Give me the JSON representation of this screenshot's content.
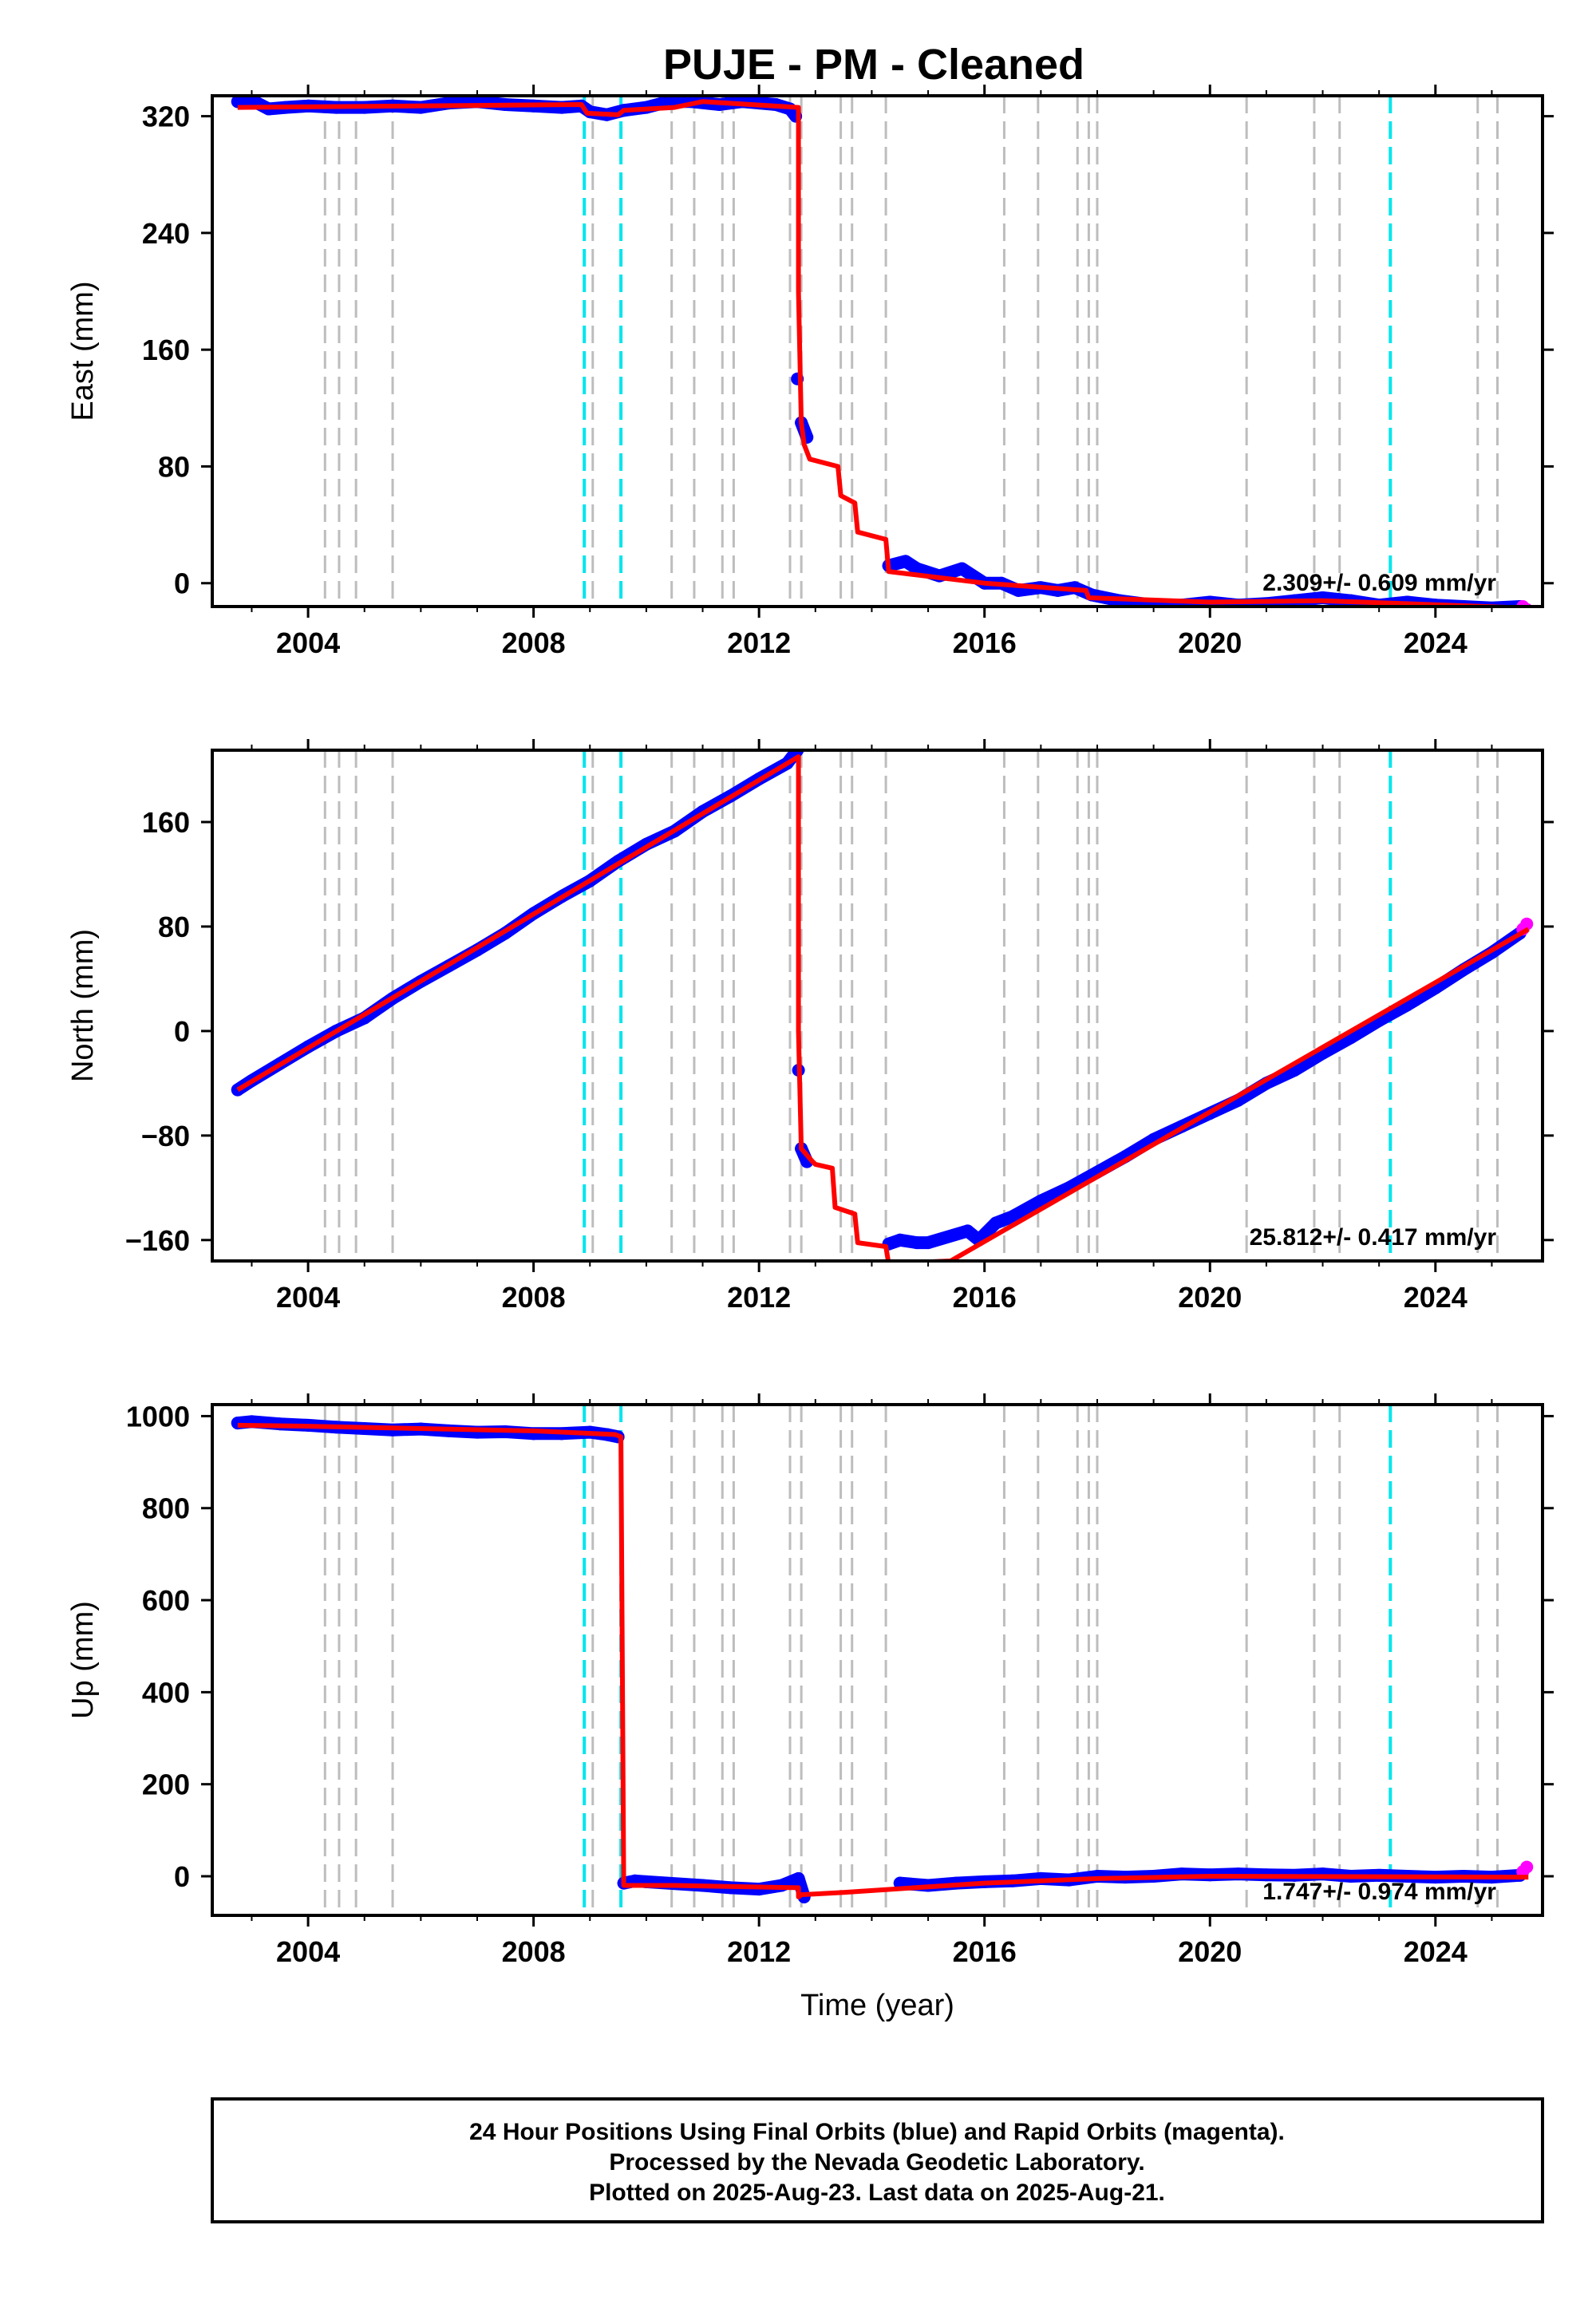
{
  "title": "PUJE  - PM - Cleaned",
  "footer": {
    "lines": [
      "24 Hour Positions Using Final Orbits (blue) and Rapid Orbits (magenta).",
      "Processed by the Nevada Geodetic Laboratory.",
      "Plotted on 2025-Aug-23. Last data on 2025-Aug-21."
    ]
  },
  "colors": {
    "final_orbits": "#0000ff",
    "rapid_orbits": "#ff00ff",
    "model": "#ff0000",
    "equipment_change": "#bdbdbd",
    "earthquake": "#00e5ee"
  },
  "chart_data": [
    {
      "type": "scatter",
      "panel": "east",
      "ylabel": "East (mm)",
      "xlabel": "",
      "xlim": [
        2002.3,
        2025.9
      ],
      "ylim": [
        -16,
        334
      ],
      "xticks": [
        2004,
        2008,
        2012,
        2016,
        2020,
        2024
      ],
      "yticks": [
        0,
        80,
        160,
        240,
        320
      ],
      "grid": false,
      "rate_label": "2.309+/- 0.609 mm/yr",
      "vlines_gray": [
        2004.3,
        2004.55,
        2004.85,
        2005.5,
        2009.05,
        2010.45,
        2010.85,
        2011.35,
        2011.55,
        2012.55,
        2012.75,
        2013.45,
        2013.65,
        2014.25,
        2016.35,
        2016.95,
        2017.65,
        2017.85,
        2018.0,
        2020.65,
        2021.85,
        2022.3,
        2024.75,
        2025.1
      ],
      "vlines_cyan": [
        2008.9,
        2009.55,
        2023.2
      ],
      "series": [
        {
          "name": "Final Orbits",
          "x": [
            2002.75,
            2003.0,
            2003.3,
            2003.6,
            2004.0,
            2004.5,
            2005.0,
            2005.5,
            2006.0,
            2006.5,
            2007.0,
            2007.5,
            2008.0,
            2008.5,
            2008.85,
            2009.0,
            2009.3,
            2009.6,
            2010.0,
            2010.4,
            2010.8,
            2011.3,
            2011.7,
            2012.0,
            2012.3,
            2012.55,
            2012.65,
            2012.68,
            2012.75,
            2012.85,
            2014.3,
            2014.6,
            2014.8,
            2015.2,
            2015.6,
            2016.0,
            2016.3,
            2016.6,
            2017.0,
            2017.3,
            2017.6,
            2017.9,
            2018.4,
            2019.0,
            2019.5,
            2020.0,
            2020.5,
            2021.0,
            2021.5,
            2022.0,
            2022.5,
            2023.0,
            2023.5,
            2024.0,
            2024.5,
            2025.0,
            2025.5
          ],
          "y": [
            330,
            331,
            325,
            326,
            327,
            326,
            326,
            327,
            326,
            329,
            330,
            328,
            327,
            326,
            327,
            323,
            321,
            324,
            326,
            330,
            330,
            328,
            330,
            329,
            328,
            325,
            320,
            140,
            110,
            100,
            12,
            15,
            10,
            5,
            10,
            0,
            0,
            -5,
            -3,
            -5,
            -3,
            -8,
            -12,
            -15,
            -15,
            -13,
            -15,
            -14,
            -12,
            -10,
            -12,
            -15,
            -13,
            -15,
            -16,
            -17,
            -16
          ]
        },
        {
          "name": "Rapid Orbits",
          "x": [
            2025.55,
            2025.62
          ],
          "y": [
            -16,
            -18
          ]
        }
      ],
      "model": {
        "x": [
          2002.75,
          2008.85,
          2008.95,
          2009.5,
          2009.6,
          2010.5,
          2011.0,
          2012.7,
          2012.7,
          2012.75,
          2012.8,
          2012.9,
          2013.4,
          2013.45,
          2013.7,
          2013.75,
          2014.25,
          2014.3,
          2016.0,
          2017.8,
          2017.85,
          2020.0,
          2022.0,
          2025.6
        ],
        "y": [
          326,
          328,
          322,
          321,
          324,
          326,
          330,
          326,
          200,
          110,
          95,
          85,
          80,
          60,
          55,
          35,
          30,
          8,
          0,
          -5,
          -10,
          -13,
          -12,
          -17
        ]
      }
    },
    {
      "type": "scatter",
      "panel": "north",
      "ylabel": "North (mm)",
      "xlabel": "",
      "xlim": [
        2002.3,
        2025.9
      ],
      "ylim": [
        -176,
        215
      ],
      "xticks": [
        2004,
        2008,
        2012,
        2016,
        2020,
        2024
      ],
      "yticks": [
        -160,
        -80,
        0,
        80,
        160
      ],
      "grid": false,
      "rate_label": "25.812+/- 0.417 mm/yr",
      "vlines_gray": [
        2004.3,
        2004.55,
        2004.85,
        2005.5,
        2009.05,
        2010.45,
        2010.85,
        2011.35,
        2011.55,
        2012.55,
        2012.75,
        2013.45,
        2013.65,
        2014.25,
        2016.35,
        2016.95,
        2017.65,
        2017.85,
        2018.0,
        2020.65,
        2021.85,
        2022.3,
        2024.75,
        2025.1
      ],
      "vlines_cyan": [
        2008.9,
        2009.55,
        2023.2
      ],
      "series": [
        {
          "name": "Final Orbits",
          "x": [
            2002.75,
            2003.0,
            2003.5,
            2004.0,
            2004.5,
            2005.0,
            2005.5,
            2006.0,
            2006.5,
            2007.0,
            2007.5,
            2008.0,
            2008.5,
            2009.0,
            2009.5,
            2010.0,
            2010.5,
            2011.0,
            2011.5,
            2012.0,
            2012.5,
            2012.68,
            2012.7,
            2012.75,
            2012.85,
            2014.3,
            2014.5,
            2014.8,
            2015.0,
            2015.7,
            2015.9,
            2016.2,
            2016.5,
            2017.0,
            2017.5,
            2018.0,
            2018.5,
            2019.0,
            2019.5,
            2020.0,
            2020.5,
            2021.0,
            2021.5,
            2022.0,
            2022.5,
            2023.0,
            2023.5,
            2024.0,
            2024.5,
            2025.0,
            2025.5
          ],
          "y": [
            -45,
            -38,
            -25,
            -12,
            0,
            10,
            25,
            38,
            50,
            62,
            75,
            90,
            103,
            115,
            130,
            143,
            153,
            168,
            180,
            193,
            205,
            215,
            -30,
            -90,
            -100,
            -163,
            -160,
            -162,
            -162,
            -153,
            -160,
            -147,
            -142,
            -130,
            -120,
            -108,
            -96,
            -83,
            -73,
            -63,
            -53,
            -40,
            -30,
            -17,
            -5,
            8,
            20,
            33,
            47,
            60,
            75
          ]
        },
        {
          "name": "Rapid Orbits",
          "x": [
            2025.55,
            2025.62
          ],
          "y": [
            78,
            82
          ]
        }
      ],
      "model": {
        "x": [
          2002.75,
          2012.7,
          2012.7,
          2012.75,
          2012.85,
          2012.95,
          2013.0,
          2013.3,
          2013.35,
          2013.7,
          2013.75,
          2014.25,
          2014.3,
          2015.4,
          2025.65
        ],
        "y": [
          -45,
          210,
          0,
          -90,
          -95,
          -100,
          -102,
          -105,
          -135,
          -140,
          -162,
          -165,
          -178,
          -176,
          78
        ]
      }
    },
    {
      "type": "scatter",
      "panel": "up",
      "ylabel": "Up (mm)",
      "xlabel": "Time (year)",
      "xlim": [
        2002.3,
        2025.9
      ],
      "ylim": [
        -85,
        1025
      ],
      "xticks": [
        2004,
        2008,
        2012,
        2016,
        2020,
        2024
      ],
      "yticks": [
        0,
        200,
        400,
        600,
        800,
        1000
      ],
      "grid": false,
      "rate_label": "1.747+/- 0.974 mm/yr",
      "vlines_gray": [
        2004.3,
        2004.55,
        2004.85,
        2005.5,
        2009.05,
        2010.45,
        2010.85,
        2011.35,
        2011.55,
        2012.55,
        2012.75,
        2013.45,
        2013.65,
        2014.25,
        2016.35,
        2016.95,
        2017.65,
        2017.85,
        2018.0,
        2020.65,
        2021.85,
        2022.3,
        2024.75,
        2025.1
      ],
      "vlines_cyan": [
        2008.9,
        2009.55,
        2023.2
      ],
      "series": [
        {
          "name": "Final Orbits",
          "x": [
            2002.75,
            2003.0,
            2003.5,
            2004.0,
            2004.5,
            2005.0,
            2005.5,
            2006.0,
            2006.5,
            2007.0,
            2007.5,
            2008.0,
            2008.5,
            2009.0,
            2009.3,
            2009.5,
            2009.6,
            2009.8,
            2010.0,
            2011.0,
            2011.5,
            2012.0,
            2012.4,
            2012.7,
            2012.8,
            2014.5,
            2015.0,
            2015.5,
            2016.0,
            2016.5,
            2017.0,
            2017.5,
            2018.0,
            2018.5,
            2019.0,
            2019.5,
            2020.0,
            2020.5,
            2021.0,
            2021.5,
            2022.0,
            2022.5,
            2023.0,
            2023.5,
            2024.0,
            2024.5,
            2025.0,
            2025.5
          ],
          "y": [
            985,
            988,
            983,
            980,
            976,
            973,
            970,
            972,
            968,
            965,
            966,
            962,
            962,
            965,
            960,
            955,
            -15,
            -10,
            -12,
            -20,
            -25,
            -28,
            -20,
            -5,
            -45,
            -15,
            -20,
            -15,
            -12,
            -10,
            -5,
            -8,
            0,
            -2,
            0,
            5,
            3,
            5,
            3,
            2,
            5,
            0,
            2,
            0,
            -2,
            0,
            -2,
            2
          ]
        },
        {
          "name": "Rapid Orbits",
          "x": [
            2025.55,
            2025.62
          ],
          "y": [
            10,
            20
          ]
        }
      ],
      "model": {
        "x": [
          2002.75,
          2004.0,
          2008.0,
          2009.45,
          2009.55,
          2009.6,
          2010.5,
          2012.7,
          2012.7,
          2012.75,
          2013.5,
          2016.0,
          2018.0,
          2020.0,
          2025.65
        ],
        "y": [
          980,
          978,
          968,
          960,
          955,
          -20,
          -20,
          -25,
          -45,
          -40,
          -35,
          -15,
          -5,
          0,
          -2
        ]
      }
    }
  ]
}
